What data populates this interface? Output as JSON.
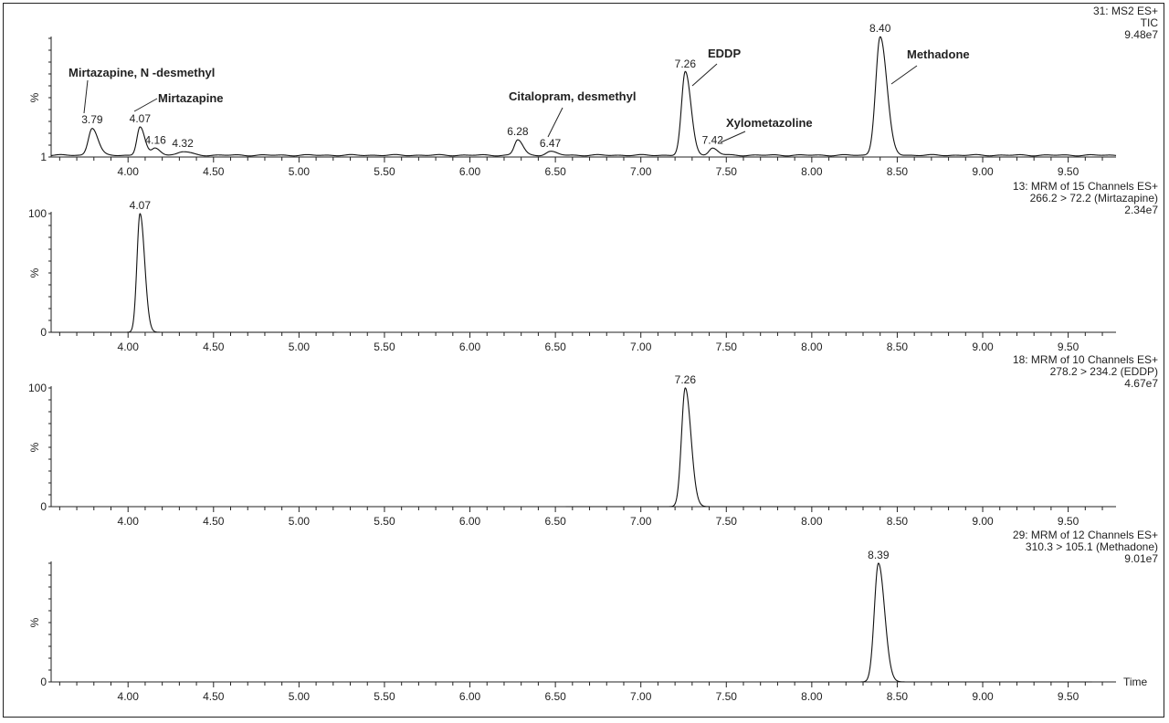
{
  "chart_data": [
    {
      "type": "line",
      "header": [
        "31: MS2 ES+",
        "TIC",
        "9.48e7"
      ],
      "ylabel": "%",
      "ytick_labels": [
        "1"
      ],
      "xlim": [
        3.55,
        9.78
      ],
      "x_ticks": [
        "4.00",
        "4.50",
        "5.00",
        "5.50",
        "6.00",
        "6.50",
        "7.00",
        "7.50",
        "8.00",
        "8.50",
        "9.00",
        "9.50"
      ],
      "baseline": 1.5,
      "peaks": [
        {
          "rt": 3.79,
          "height": 23,
          "width": 0.022,
          "label": "3.79"
        },
        {
          "rt": 4.07,
          "height": 24,
          "width": 0.018,
          "label": "4.07"
        },
        {
          "rt": 4.16,
          "height": 6,
          "width": 0.02,
          "label": "4.16"
        },
        {
          "rt": 4.32,
          "height": 3,
          "width": 0.03,
          "label": "4.32"
        },
        {
          "rt": 6.28,
          "height": 13,
          "width": 0.02,
          "label": "6.28"
        },
        {
          "rt": 6.47,
          "height": 3,
          "width": 0.025,
          "label": "6.47"
        },
        {
          "rt": 7.26,
          "height": 70,
          "width": 0.022,
          "label": "7.26"
        },
        {
          "rt": 7.42,
          "height": 6,
          "width": 0.02,
          "label": "7.42"
        },
        {
          "rt": 8.4,
          "height": 100,
          "width": 0.026,
          "label": "8.40"
        }
      ],
      "annotations": [
        {
          "text": "Mirtazapine, N -desmethyl",
          "x": 3.79
        },
        {
          "text": "Mirtazapine",
          "x": 4.07
        },
        {
          "text": "Citalopram, desmethyl",
          "x": 6.47
        },
        {
          "text": "EDDP",
          "x": 7.26
        },
        {
          "text": "Xylometazoline",
          "x": 7.42
        },
        {
          "text": "Methadone",
          "x": 8.4
        }
      ]
    },
    {
      "type": "line",
      "header": [
        "13: MRM of 15 Channels ES+",
        "266.2 > 72.2 (Mirtazapine)",
        "2.34e7"
      ],
      "ylabel": "%",
      "ytick_labels": [
        "100",
        "0"
      ],
      "xlim": [
        3.55,
        9.78
      ],
      "x_ticks": [
        "4.00",
        "4.50",
        "5.00",
        "5.50",
        "6.00",
        "6.50",
        "7.00",
        "7.50",
        "8.00",
        "8.50",
        "9.00",
        "9.50"
      ],
      "trace_range": [
        3.55,
        5.22
      ],
      "baseline": 0,
      "peaks": [
        {
          "rt": 4.07,
          "height": 100,
          "width": 0.018,
          "label": "4.07"
        }
      ]
    },
    {
      "type": "line",
      "header": [
        "18: MRM of 10 Channels ES+",
        "278.2 > 234.2 (EDDP)",
        "4.67e7"
      ],
      "ylabel": "%",
      "ytick_labels": [
        "100",
        "0"
      ],
      "xlim": [
        3.55,
        9.78
      ],
      "x_ticks": [
        "4.00",
        "4.50",
        "5.00",
        "5.50",
        "6.00",
        "6.50",
        "7.00",
        "7.50",
        "8.00",
        "8.50",
        "9.00",
        "9.50"
      ],
      "trace_range": [
        6.56,
        8.42
      ],
      "baseline": 0,
      "peaks": [
        {
          "rt": 7.26,
          "height": 100,
          "width": 0.022,
          "label": "7.26"
        }
      ]
    },
    {
      "type": "line",
      "header": [
        "29: MRM of 12 Channels ES+",
        "310.3 > 105.1 (Methadone)",
        "9.01e7"
      ],
      "ylabel": "%",
      "ytick_labels": [
        "0"
      ],
      "xlim": [
        3.55,
        9.78
      ],
      "x_ticks": [
        "4.00",
        "4.50",
        "5.00",
        "5.50",
        "6.00",
        "6.50",
        "7.00",
        "7.50",
        "8.00",
        "8.50",
        "9.00",
        "9.50"
      ],
      "xlabel": "Time",
      "trace_range": [
        7.81,
        9.64
      ],
      "baseline": 0,
      "peaks": [
        {
          "rt": 8.39,
          "height": 100,
          "width": 0.024,
          "label": "8.39"
        }
      ]
    }
  ]
}
